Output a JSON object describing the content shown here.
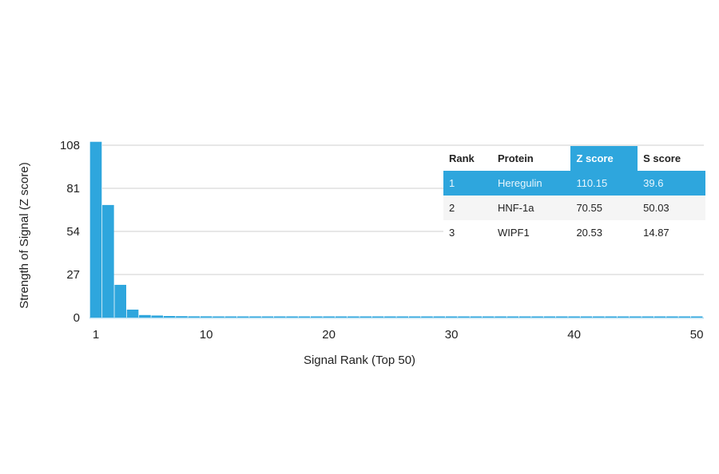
{
  "chart_data": {
    "type": "bar",
    "xlabel": "Signal Rank (Top 50)",
    "ylabel": "Strength of Signal (Z score)",
    "ylim": [
      0,
      108
    ],
    "yticks": [
      0,
      27,
      54,
      81,
      108
    ],
    "xticks": [
      1,
      10,
      20,
      30,
      40,
      50
    ],
    "grid": true,
    "bar_color": "#2ea6dd",
    "categories": [
      1,
      2,
      3,
      4,
      5,
      6,
      7,
      8,
      9,
      10,
      11,
      12,
      13,
      14,
      15,
      16,
      17,
      18,
      19,
      20,
      21,
      22,
      23,
      24,
      25,
      26,
      27,
      28,
      29,
      30,
      31,
      32,
      33,
      34,
      35,
      36,
      37,
      38,
      39,
      40,
      41,
      42,
      43,
      44,
      45,
      46,
      47,
      48,
      49,
      50
    ],
    "values": [
      110.15,
      70.55,
      20.53,
      5.0,
      1.6,
      1.3,
      1.0,
      0.9,
      0.8,
      0.8,
      0.7,
      0.7,
      0.6,
      0.6,
      0.6,
      0.5,
      0.5,
      0.5,
      0.5,
      0.5,
      0.5,
      0.5,
      0.5,
      0.5,
      0.4,
      0.4,
      0.4,
      0.4,
      0.4,
      0.4,
      0.4,
      0.4,
      0.4,
      0.4,
      0.4,
      0.4,
      0.4,
      0.4,
      0.4,
      0.4,
      0.4,
      0.4,
      0.4,
      0.4,
      0.4,
      0.4,
      0.4,
      0.4,
      0.4,
      0.4
    ]
  },
  "table": {
    "headers": [
      "Rank",
      "Protein",
      "Z score",
      "S score"
    ],
    "rows": [
      [
        "1",
        "Heregulin",
        "110.15",
        "39.6"
      ],
      [
        "2",
        "HNF-1a",
        "70.55",
        "50.03"
      ],
      [
        "3",
        "WIPF1",
        "20.53",
        "14.87"
      ]
    ]
  }
}
